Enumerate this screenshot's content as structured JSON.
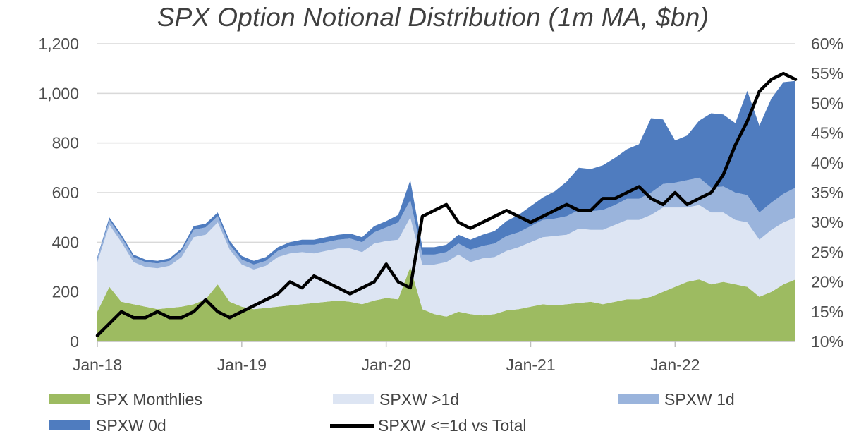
{
  "chart_data": {
    "type": "area",
    "title": "SPX Option Notional Distribution (1m MA, $bn)",
    "x_labels": [
      "Jan-18",
      "Jan-19",
      "Jan-20",
      "Jan-21",
      "Jan-22"
    ],
    "y_left": {
      "ticks": [
        "0",
        "200",
        "400",
        "600",
        "800",
        "1,000",
        "1,200"
      ],
      "range": [
        0,
        1200
      ]
    },
    "y_right": {
      "ticks": [
        "10%",
        "15%",
        "20%",
        "25%",
        "30%",
        "35%",
        "40%",
        "45%",
        "50%",
        "55%",
        "60%"
      ],
      "range": [
        10,
        60
      ]
    },
    "grid": true,
    "colors": {
      "spx_monthlies": "#9dbb61",
      "spxw_gt1d": "#dde5f3",
      "spxw_1d": "#9ab4dc",
      "spxw_0d": "#4f7cbf",
      "ratio_line": "#000000"
    },
    "x": [
      "2018-01",
      "2018-02",
      "2018-03",
      "2018-04",
      "2018-05",
      "2018-06",
      "2018-07",
      "2018-08",
      "2018-09",
      "2018-10",
      "2018-11",
      "2018-12",
      "2019-01",
      "2019-02",
      "2019-03",
      "2019-04",
      "2019-05",
      "2019-06",
      "2019-07",
      "2019-08",
      "2019-09",
      "2019-10",
      "2019-11",
      "2019-12",
      "2020-01",
      "2020-02",
      "2020-03",
      "2020-04",
      "2020-05",
      "2020-06",
      "2020-07",
      "2020-08",
      "2020-09",
      "2020-10",
      "2020-11",
      "2020-12",
      "2021-01",
      "2021-02",
      "2021-03",
      "2021-04",
      "2021-05",
      "2021-06",
      "2021-07",
      "2021-08",
      "2021-09",
      "2021-10",
      "2021-11",
      "2021-12",
      "2022-01",
      "2022-02",
      "2022-03",
      "2022-04",
      "2022-05",
      "2022-06",
      "2022-07",
      "2022-08",
      "2022-09",
      "2022-10",
      "2022-11"
    ],
    "series": [
      {
        "name": "SPX Monthlies",
        "kind": "area",
        "values": [
          120,
          220,
          160,
          150,
          140,
          130,
          135,
          140,
          150,
          170,
          230,
          160,
          140,
          130,
          135,
          140,
          145,
          150,
          155,
          160,
          165,
          160,
          150,
          165,
          175,
          170,
          300,
          130,
          110,
          100,
          120,
          110,
          105,
          110,
          125,
          130,
          140,
          150,
          145,
          150,
          155,
          160,
          150,
          160,
          170,
          170,
          180,
          200,
          220,
          240,
          250,
          230,
          240,
          230,
          220,
          180,
          200,
          230,
          250
        ]
      },
      {
        "name": "SPXW >1d",
        "kind": "area",
        "values": [
          200,
          250,
          240,
          170,
          160,
          165,
          170,
          200,
          270,
          260,
          250,
          210,
          170,
          160,
          170,
          200,
          210,
          210,
          200,
          205,
          210,
          215,
          210,
          230,
          230,
          240,
          200,
          180,
          200,
          220,
          230,
          210,
          230,
          230,
          240,
          250,
          260,
          270,
          280,
          280,
          300,
          290,
          300,
          310,
          320,
          320,
          330,
          340,
          320,
          300,
          300,
          290,
          280,
          260,
          260,
          230,
          250,
          250,
          250
        ]
      },
      {
        "name": "SPXW 1d",
        "kind": "area",
        "values": [
          15,
          20,
          20,
          20,
          20,
          20,
          20,
          25,
          30,
          30,
          25,
          20,
          20,
          20,
          20,
          25,
          30,
          30,
          35,
          35,
          35,
          40,
          40,
          45,
          55,
          70,
          70,
          40,
          40,
          40,
          45,
          50,
          50,
          55,
          60,
          60,
          65,
          70,
          70,
          75,
          75,
          75,
          80,
          80,
          85,
          85,
          90,
          95,
          100,
          110,
          110,
          100,
          105,
          110,
          110,
          110,
          110,
          115,
          120
        ]
      },
      {
        "name": "SPXW 0d",
        "kind": "area",
        "values": [
          5,
          10,
          10,
          10,
          10,
          10,
          10,
          10,
          15,
          15,
          15,
          15,
          15,
          15,
          15,
          15,
          15,
          20,
          20,
          20,
          20,
          20,
          20,
          25,
          25,
          30,
          80,
          30,
          30,
          30,
          35,
          40,
          45,
          50,
          60,
          70,
          80,
          90,
          110,
          140,
          170,
          170,
          180,
          190,
          200,
          220,
          300,
          260,
          170,
          180,
          230,
          300,
          290,
          280,
          420,
          350,
          420,
          450,
          430
        ]
      },
      {
        "name": "SPXW <=1d vs Total",
        "kind": "line",
        "axis": "right",
        "values": [
          11,
          13,
          15,
          14,
          14,
          15,
          14,
          14,
          15,
          17,
          15,
          14,
          15,
          16,
          17,
          18,
          20,
          19,
          21,
          20,
          19,
          18,
          19,
          20,
          23,
          20,
          19,
          31,
          32,
          33,
          30,
          29,
          30,
          31,
          32,
          31,
          30,
          31,
          32,
          33,
          32,
          32,
          34,
          34,
          35,
          36,
          34,
          33,
          35,
          33,
          34,
          35,
          38,
          43,
          47,
          52,
          54,
          55,
          54
        ]
      }
    ]
  },
  "legend": [
    {
      "label": "SPX Monthlies"
    },
    {
      "label": "SPXW >1d"
    },
    {
      "label": "SPXW 1d"
    },
    {
      "label": "SPXW 0d"
    },
    {
      "label": "SPXW <=1d vs Total"
    }
  ]
}
